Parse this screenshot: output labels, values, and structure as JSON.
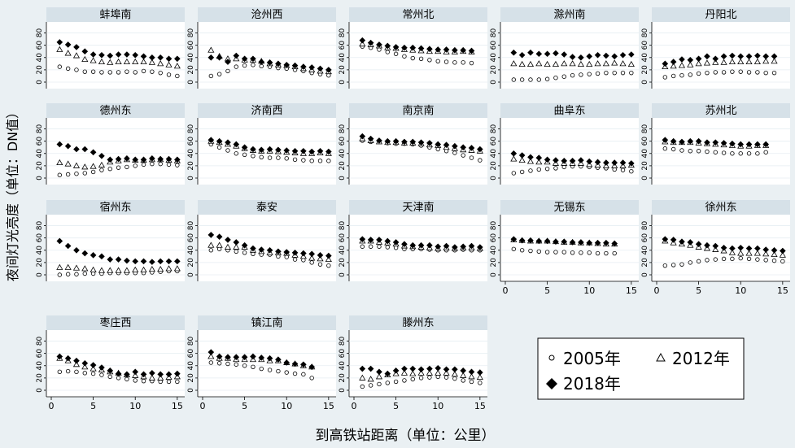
{
  "figure": {
    "ylabel": "夜间灯光亮度（单位：DN值）",
    "xlabel": "到高铁站距离（单位：公里）",
    "colors": {
      "background": "#eaf0f3",
      "panel_title_bg": "#d6e1e8",
      "plot_bg": "#ffffff",
      "marker": "#000000"
    }
  },
  "legend": {
    "items": [
      {
        "label": "2005年",
        "marker": "circle"
      },
      {
        "label": "2012年",
        "marker": "triangle"
      },
      {
        "label": "2018年",
        "marker": "diamond"
      }
    ]
  },
  "chart_data": {
    "type": "scatter",
    "layout": "small-multiples 5x4",
    "x_ticks": [
      0,
      5,
      10,
      15
    ],
    "y_ticks": [
      0,
      20,
      40,
      60,
      80
    ],
    "xlim": [
      0,
      15.5
    ],
    "ylim": [
      0,
      90
    ],
    "grid": "horizontal",
    "legend_position": "bottom-right",
    "panels": [
      {
        "title": "蚌埠南",
        "y2005": [
          25,
          22,
          20,
          17,
          17,
          16,
          16,
          16,
          17,
          16,
          18,
          17,
          15,
          12,
          10
        ],
        "y2012": [
          53,
          47,
          43,
          37,
          35,
          33,
          32,
          33,
          33,
          33,
          33,
          32,
          30,
          28,
          26
        ],
        "y2018": [
          65,
          61,
          57,
          50,
          45,
          44,
          43,
          45,
          45,
          44,
          42,
          40,
          40,
          38,
          38
        ]
      },
      {
        "title": "沧州西",
        "y2005": [
          10,
          13,
          18,
          25,
          27,
          28,
          26,
          25,
          23,
          22,
          20,
          18,
          15,
          13,
          11
        ],
        "y2012": [
          52,
          42,
          38,
          38,
          36,
          36,
          34,
          30,
          28,
          27,
          25,
          22,
          20,
          18,
          17
        ],
        "y2018": [
          40,
          40,
          33,
          43,
          38,
          38,
          33,
          32,
          30,
          28,
          27,
          25,
          24,
          22,
          20
        ]
      },
      {
        "title": "常州北",
        "y2005": [
          58,
          56,
          53,
          49,
          46,
          42,
          39,
          38,
          36,
          34,
          33,
          32,
          32,
          31
        ],
        "y2012": [
          62,
          61,
          59,
          56,
          55,
          53,
          52,
          51,
          50,
          50,
          49,
          49,
          50,
          49
        ],
        "y2018": [
          68,
          64,
          61,
          59,
          57,
          56,
          56,
          55,
          54,
          53,
          53,
          52,
          52,
          51
        ]
      },
      {
        "title": "滁州南",
        "y2005": [
          4,
          4,
          4,
          4,
          5,
          7,
          9,
          11,
          12,
          13,
          14,
          15,
          15,
          15,
          15
        ],
        "y2012": [
          30,
          29,
          29,
          30,
          29,
          29,
          30,
          30,
          29,
          29,
          30,
          30,
          31,
          30,
          29
        ],
        "y2018": [
          48,
          44,
          48,
          46,
          46,
          47,
          45,
          41,
          40,
          42,
          44,
          43,
          42,
          44,
          45
        ]
      },
      {
        "title": "丹阳北",
        "y2005": [
          8,
          10,
          11,
          12,
          14,
          15,
          16,
          16,
          17,
          17,
          16,
          16,
          15,
          15
        ],
        "y2012": [
          25,
          26,
          27,
          28,
          30,
          31,
          32,
          32,
          33,
          33,
          33,
          33,
          34,
          34
        ],
        "y2018": [
          30,
          33,
          37,
          36,
          38,
          42,
          38,
          42,
          43,
          42,
          42,
          43,
          42,
          42
        ]
      },
      {
        "title": "德州东",
        "y2005": [
          5,
          6,
          7,
          8,
          10,
          13,
          15,
          17,
          18,
          20,
          22,
          23,
          23,
          22,
          21
        ],
        "y2012": [
          25,
          23,
          20,
          18,
          19,
          21,
          26,
          28,
          30,
          29,
          29,
          30,
          30,
          29,
          28
        ],
        "y2018": [
          55,
          52,
          47,
          47,
          42,
          36,
          30,
          31,
          32,
          30,
          30,
          32,
          31,
          31,
          30
        ]
      },
      {
        "title": "济南西",
        "y2005": [
          55,
          50,
          45,
          40,
          38,
          36,
          34,
          33,
          33,
          32,
          30,
          29,
          28,
          28,
          28
        ],
        "y2012": [
          60,
          58,
          55,
          52,
          48,
          45,
          44,
          44,
          43,
          42,
          41,
          40,
          40,
          41,
          40
        ],
        "y2018": [
          62,
          60,
          58,
          55,
          50,
          47,
          46,
          47,
          46,
          45,
          44,
          44,
          43,
          44,
          43
        ]
      },
      {
        "title": "南京南",
        "y2005": [
          61,
          59,
          59,
          57,
          56,
          56,
          55,
          53,
          50,
          47,
          44,
          41,
          37,
          33,
          29
        ],
        "y2012": [
          64,
          61,
          59,
          58,
          58,
          57,
          57,
          56,
          54,
          53,
          50,
          48,
          46,
          45,
          44
        ],
        "y2018": [
          68,
          64,
          61,
          60,
          60,
          59,
          59,
          58,
          57,
          55,
          54,
          52,
          50,
          49,
          47
        ]
      },
      {
        "title": "曲阜东",
        "y2005": [
          8,
          10,
          12,
          14,
          15,
          16,
          18,
          19,
          19,
          18,
          17,
          16,
          14,
          13,
          11
        ],
        "y2012": [
          31,
          29,
          27,
          26,
          26,
          24,
          24,
          24,
          24,
          22,
          21,
          20,
          20,
          20,
          21
        ],
        "y2018": [
          40,
          37,
          34,
          33,
          30,
          29,
          28,
          28,
          29,
          27,
          26,
          25,
          25,
          25,
          24
        ]
      },
      {
        "title": "苏州北",
        "y2005": [
          48,
          47,
          45,
          44,
          44,
          43,
          42,
          41,
          40,
          40,
          40,
          40,
          42
        ],
        "y2012": [
          59,
          58,
          58,
          58,
          57,
          56,
          55,
          54,
          53,
          52,
          52,
          53,
          53
        ],
        "y2018": [
          62,
          60,
          59,
          60,
          60,
          58,
          58,
          57,
          56,
          55,
          55,
          55,
          55
        ]
      },
      {
        "title": "宿州东",
        "y2005": [
          0,
          1,
          1,
          2,
          2,
          2,
          3,
          3,
          3,
          3,
          3,
          4,
          5,
          6,
          6
        ],
        "y2012": [
          12,
          12,
          11,
          10,
          8,
          7,
          7,
          7,
          7,
          8,
          8,
          9,
          9,
          10,
          10
        ],
        "y2018": [
          55,
          47,
          40,
          35,
          32,
          30,
          25,
          25,
          23,
          22,
          22,
          21,
          22,
          22,
          22
        ]
      },
      {
        "title": "泰安",
        "y2005": [
          40,
          42,
          40,
          38,
          36,
          34,
          33,
          33,
          30,
          29,
          25,
          24,
          20,
          17,
          15
        ],
        "y2012": [
          48,
          48,
          45,
          45,
          45,
          40,
          38,
          36,
          36,
          35,
          32,
          30,
          27,
          26,
          25
        ],
        "y2018": [
          65,
          62,
          57,
          53,
          48,
          43,
          41,
          40,
          38,
          37,
          36,
          35,
          34,
          32,
          31
        ]
      },
      {
        "title": "天津南",
        "y2005": [
          46,
          46,
          46,
          45,
          44,
          42,
          42,
          42,
          41,
          40,
          40,
          40,
          41,
          40,
          40
        ],
        "y2012": [
          55,
          55,
          53,
          52,
          50,
          47,
          46,
          45,
          44,
          43,
          44,
          43,
          44,
          44,
          43
        ],
        "y2018": [
          58,
          57,
          57,
          55,
          53,
          50,
          48,
          48,
          48,
          46,
          47,
          45,
          46,
          47,
          45
        ]
      },
      {
        "title": "无锡东",
        "y2005": [
          42,
          40,
          39,
          38,
          37,
          37,
          37,
          36,
          36,
          36,
          35,
          35,
          35
        ],
        "y2012": [
          57,
          56,
          55,
          55,
          55,
          54,
          53,
          53,
          52,
          52,
          51,
          50,
          50
        ],
        "y2018": [
          58,
          56,
          56,
          55,
          55,
          54,
          54,
          53,
          53,
          52,
          52,
          52,
          51
        ]
      },
      {
        "title": "徐州东",
        "y2005": [
          15,
          16,
          17,
          20,
          22,
          24,
          25,
          26,
          26,
          27,
          26,
          25,
          24,
          23,
          22
        ],
        "y2012": [
          55,
          52,
          50,
          48,
          45,
          43,
          41,
          39,
          36,
          35,
          35,
          35,
          34,
          33,
          32
        ],
        "y2018": [
          58,
          57,
          54,
          53,
          50,
          48,
          47,
          44,
          43,
          44,
          43,
          43,
          41,
          40,
          39
        ]
      },
      {
        "title": "枣庄西",
        "y2005": [
          30,
          31,
          30,
          28,
          27,
          25,
          22,
          20,
          18,
          16,
          15,
          15,
          14,
          14,
          14
        ],
        "y2012": [
          52,
          48,
          42,
          38,
          35,
          33,
          30,
          28,
          25,
          24,
          22,
          20,
          20,
          21,
          22
        ],
        "y2018": [
          55,
          52,
          48,
          44,
          41,
          37,
          32,
          27,
          26,
          30,
          26,
          28,
          26,
          26,
          27
        ]
      },
      {
        "title": "镇江南",
        "y2005": [
          45,
          44,
          43,
          42,
          40,
          38,
          35,
          33,
          31,
          29,
          27,
          26,
          20
        ],
        "y2012": [
          55,
          52,
          52,
          50,
          50,
          50,
          50,
          48,
          48,
          45,
          43,
          40,
          38
        ],
        "y2018": [
          62,
          55,
          54,
          54,
          54,
          55,
          53,
          52,
          50,
          45,
          43,
          42,
          38
        ]
      },
      {
        "title": "滕州东",
        "y2005": [
          6,
          8,
          10,
          12,
          14,
          16,
          18,
          20,
          21,
          22,
          21,
          19,
          16,
          14,
          12
        ],
        "y2012": [
          20,
          18,
          22,
          25,
          27,
          28,
          27,
          28,
          28,
          28,
          28,
          26,
          24,
          22,
          21
        ],
        "y2018": [
          35,
          35,
          30,
          27,
          32,
          35,
          35,
          34,
          35,
          36,
          34,
          34,
          32,
          30,
          29
        ]
      }
    ]
  }
}
